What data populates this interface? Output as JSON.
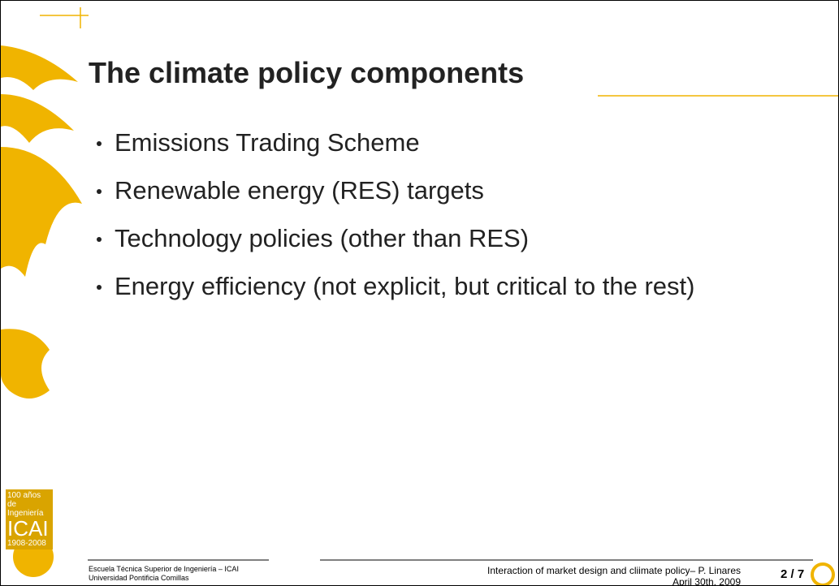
{
  "slide": {
    "title": "The climate policy components",
    "bullets": [
      "Emissions Trading Scheme",
      "Renewable energy (RES) targets",
      "Technology policies (other than RES)",
      "Energy efficiency (not explicit, but critical to the rest)"
    ],
    "logo": {
      "line1": "100 años de",
      "line2": "Ingeniería",
      "line3": "ICAI",
      "line4": "1908-2008"
    },
    "footer": {
      "school1": "Escuela Técnica Superior de Ingeniería – ICAI",
      "school2": "Universidad Pontificia Comillas",
      "talk": "Interaction of market design and cliimate policy– P. Linares",
      "date": "April 30th, 2009",
      "page": "2 / 7"
    }
  }
}
